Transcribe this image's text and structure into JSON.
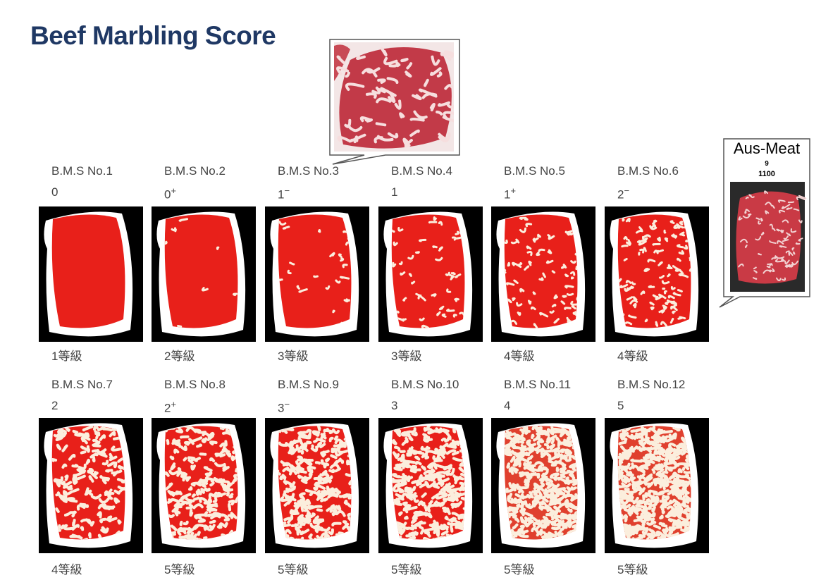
{
  "title": "Beef Marbling Score",
  "cards": [
    {
      "label": "B.M.S No.1",
      "score": "0",
      "grade": "1等級"
    },
    {
      "label": "B.M.S No.2",
      "score": "0",
      "modifier": "+",
      "grade": "2等級"
    },
    {
      "label": "B.M.S No.3",
      "score": "1",
      "modifier": "−",
      "grade": "3等級"
    },
    {
      "label": "B.M.S No.4",
      "score": "1",
      "grade": "3等級"
    },
    {
      "label": "B.M.S No.5",
      "score": "1",
      "modifier": "+",
      "grade": "4等級"
    },
    {
      "label": "B.M.S No.6",
      "score": "2",
      "modifier": "−",
      "grade": "4等級"
    },
    {
      "label": "B.M.S No.7",
      "score": "2",
      "grade": "4等級"
    },
    {
      "label": "B.M.S No.8",
      "score": "2",
      "modifier": "+",
      "grade": "5等級"
    },
    {
      "label": "B.M.S No.9",
      "score": "3",
      "modifier": "−",
      "grade": "5等級"
    },
    {
      "label": "B.M.S No.10",
      "score": "3",
      "grade": "5等級"
    },
    {
      "label": "B.M.S No.11",
      "score": "4",
      "grade": "5等級"
    },
    {
      "label": "B.M.S No.12",
      "score": "5",
      "grade": "5等級"
    }
  ],
  "aus_meat": {
    "title": "Aus-Meat",
    "score": "9",
    "code": "1100"
  }
}
